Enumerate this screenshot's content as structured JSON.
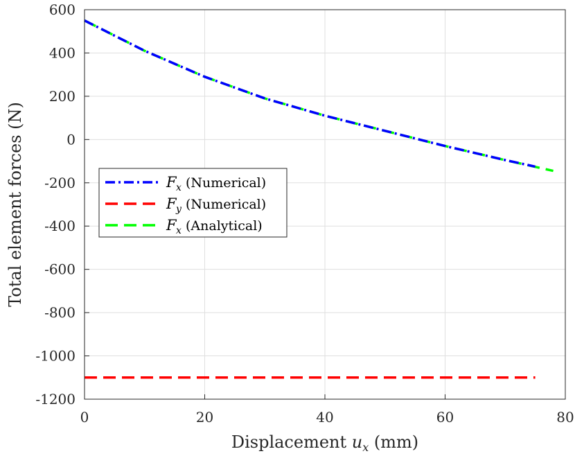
{
  "chart_data": {
    "type": "line",
    "title": "",
    "xlabel": "Displacement u_x (mm)",
    "xlabel_parts": {
      "prefix": "Displacement ",
      "symbol": "u",
      "subscript": "x",
      "suffix": " (mm)"
    },
    "ylabel": "Total element forces (N)",
    "xlim": [
      0,
      80
    ],
    "ylim": [
      -1200,
      600
    ],
    "xticks": [
      0,
      20,
      40,
      60,
      80
    ],
    "xtick_labels": [
      "0",
      "20",
      "40",
      "60",
      "80"
    ],
    "yticks": [
      -1200,
      -1000,
      -800,
      -600,
      -400,
      -200,
      0,
      200,
      400,
      600
    ],
    "ytick_labels": [
      "-1200",
      "-1000",
      "-800",
      "-600",
      "-400",
      "-200",
      "0",
      "200",
      "400",
      "600"
    ],
    "grid": true,
    "legend_location": "center-left",
    "series": [
      {
        "name": "F_x (Numerical)",
        "symbol": "F",
        "subscript": "x",
        "label_suffix": " (Numerical)",
        "color": "#0000ff",
        "line_style": "dashdot",
        "x": [
          0,
          10,
          20,
          30,
          40,
          50,
          60,
          70,
          75
        ],
        "y": [
          550,
          410,
          290,
          190,
          110,
          40,
          -30,
          -95,
          -125
        ]
      },
      {
        "name": "F_y (Numerical)",
        "symbol": "F",
        "subscript": "y",
        "label_suffix": " (Numerical)",
        "color": "#ff0000",
        "line_style": "dashed",
        "x": [
          0,
          75
        ],
        "y": [
          -1100,
          -1100
        ]
      },
      {
        "name": "F_x (Analytical)",
        "symbol": "F",
        "subscript": "x",
        "label_suffix": " (Analytical)",
        "color": "#00ff00",
        "line_style": "dashed",
        "x": [
          0,
          10,
          20,
          30,
          40,
          50,
          60,
          70,
          78
        ],
        "y": [
          550,
          410,
          290,
          190,
          110,
          40,
          -30,
          -95,
          -145
        ]
      }
    ]
  }
}
